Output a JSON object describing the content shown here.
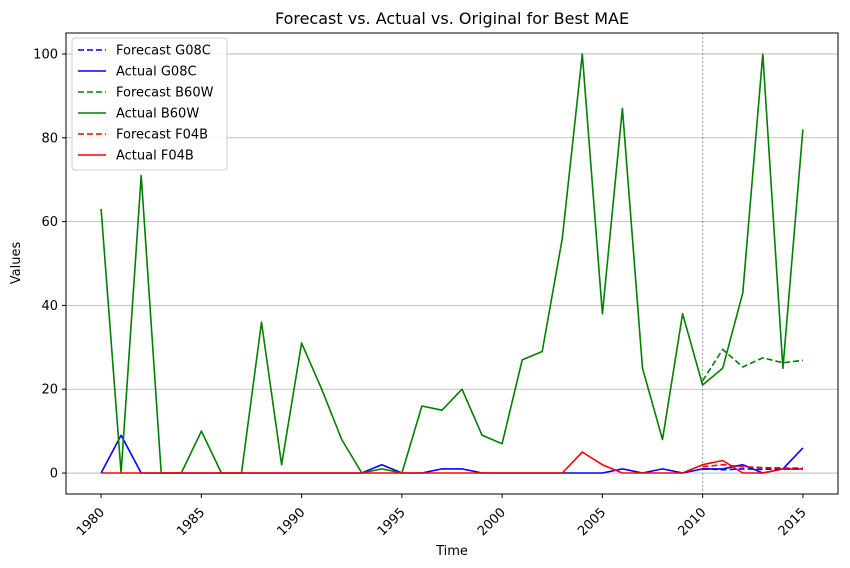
{
  "chart_data": {
    "type": "line",
    "title": "Forecast vs. Actual vs. Original for Best MAE",
    "xlabel": "Time",
    "ylabel": "Values",
    "xlim": [
      1978.25,
      2016.75
    ],
    "ylim": [
      -5,
      105
    ],
    "x_ticks": [
      1980,
      1985,
      1990,
      1995,
      2000,
      2005,
      2010,
      2015
    ],
    "y_ticks": [
      0,
      20,
      40,
      60,
      80,
      100
    ],
    "grid": "horizontal",
    "vline": 2010,
    "legend_position": "top-left",
    "series": [
      {
        "name": "Forecast G08C",
        "color": "#0000ff",
        "style": "dashed",
        "x": [
          2010,
          2011,
          2012,
          2013,
          2014,
          2015
        ],
        "values": [
          1.0,
          0.8,
          1.0,
          0.9,
          1.0,
          1.0
        ]
      },
      {
        "name": "Actual G08C",
        "color": "#0000ff",
        "style": "solid",
        "x": [
          1980,
          1981,
          1982,
          1983,
          1984,
          1985,
          1986,
          1987,
          1988,
          1989,
          1990,
          1991,
          1992,
          1993,
          1994,
          1995,
          1996,
          1997,
          1998,
          1999,
          2000,
          2001,
          2002,
          2003,
          2004,
          2005,
          2006,
          2007,
          2008,
          2009,
          2010,
          2011,
          2012,
          2013,
          2014,
          2015
        ],
        "values": [
          0,
          9,
          0,
          0,
          0,
          0,
          0,
          0,
          0,
          0,
          0,
          0,
          0,
          0,
          2,
          0,
          0,
          1,
          1,
          0,
          0,
          0,
          0,
          0,
          0,
          0,
          1,
          0,
          1,
          0,
          1,
          1,
          2,
          0,
          1,
          6
        ]
      },
      {
        "name": "Forecast B60W",
        "color": "#008000",
        "style": "dashed",
        "x": [
          2010,
          2011,
          2012,
          2013,
          2014,
          2015
        ],
        "values": [
          22,
          29.5,
          25.3,
          27.5,
          26.3,
          26.9
        ]
      },
      {
        "name": "Actual B60W",
        "color": "#008000",
        "style": "solid",
        "x": [
          1980,
          1981,
          1982,
          1983,
          1984,
          1985,
          1986,
          1987,
          1988,
          1989,
          1990,
          1991,
          1992,
          1993,
          1994,
          1995,
          1996,
          1997,
          1998,
          1999,
          2000,
          2001,
          2002,
          2003,
          2004,
          2005,
          2006,
          2007,
          2008,
          2009,
          2010,
          2011,
          2012,
          2013,
          2014,
          2015
        ],
        "values": [
          63,
          0,
          71,
          0,
          0,
          10,
          0,
          0,
          36,
          2,
          31,
          20,
          8,
          0,
          1,
          0,
          16,
          15,
          20,
          9,
          7,
          27,
          29,
          56,
          100,
          38,
          87,
          25,
          8,
          38,
          21,
          25,
          43,
          100,
          25,
          82
        ]
      },
      {
        "name": "Forecast F04B",
        "color": "#ff0000",
        "style": "dashed",
        "x": [
          2010,
          2011,
          2012,
          2013,
          2014,
          2015
        ],
        "values": [
          1.5,
          2.0,
          1.5,
          1.3,
          1.2,
          1.2
        ]
      },
      {
        "name": "Actual F04B",
        "color": "#ff0000",
        "style": "solid",
        "x": [
          1980,
          1981,
          1982,
          1983,
          1984,
          1985,
          1986,
          1987,
          1988,
          1989,
          1990,
          1991,
          1992,
          1993,
          1994,
          1995,
          1996,
          1997,
          1998,
          1999,
          2000,
          2001,
          2002,
          2003,
          2004,
          2005,
          2006,
          2007,
          2008,
          2009,
          2010,
          2011,
          2012,
          2013,
          2014,
          2015
        ],
        "values": [
          0,
          0,
          0,
          0,
          0,
          0,
          0,
          0,
          0,
          0,
          0,
          0,
          0,
          0,
          0,
          0,
          0,
          0,
          0,
          0,
          0,
          0,
          0,
          0,
          5,
          2,
          0,
          0,
          0,
          0,
          2,
          3,
          0,
          0,
          1,
          1
        ]
      }
    ]
  }
}
